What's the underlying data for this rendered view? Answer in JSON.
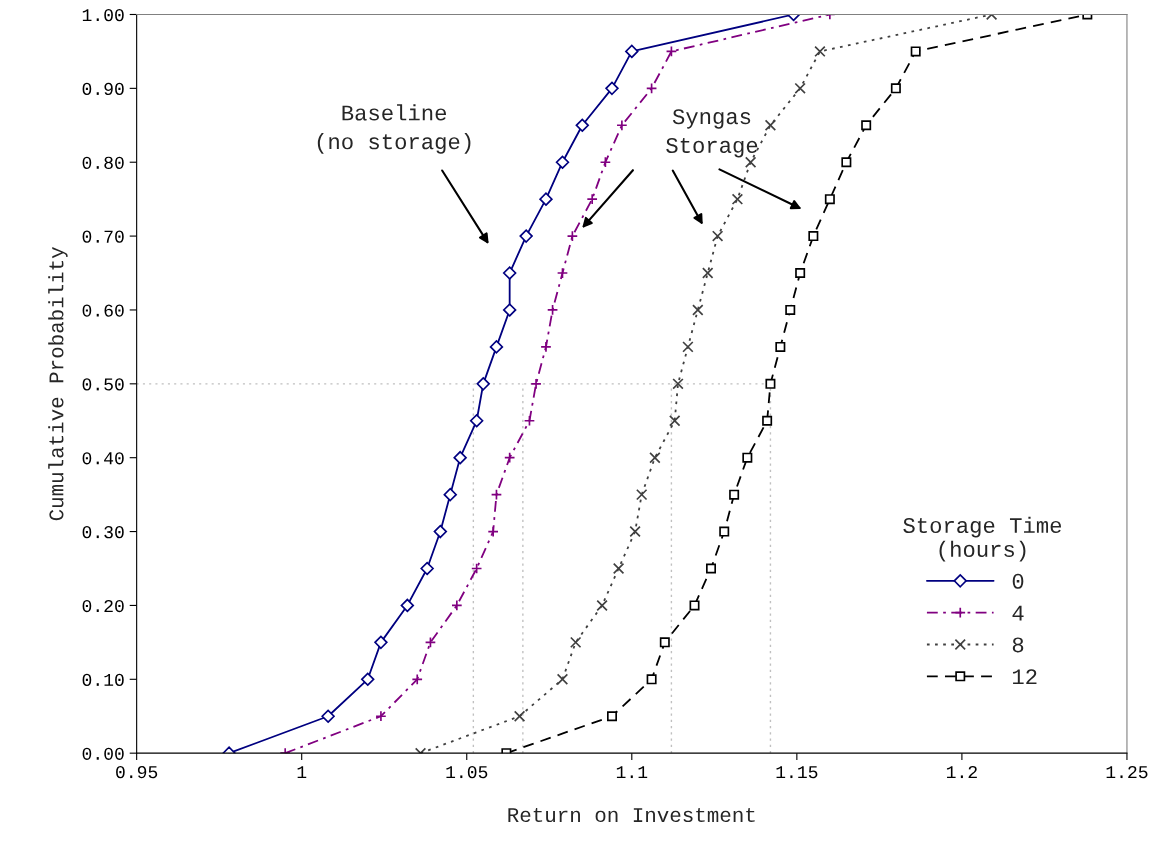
{
  "chart_data": {
    "type": "line",
    "xlabel": "Return on Investment",
    "ylabel": "Cumulative Probability",
    "legend_title": "Storage Time\n(hours)",
    "legend": "bottom right",
    "grid": false,
    "annotations": [
      "Baseline\n(no storage)",
      "Syngas\nStorage"
    ],
    "xlim": [
      0.95,
      1.25
    ],
    "xticks": [
      0.95,
      1,
      1.05,
      1.1,
      1.15,
      1.2,
      1.25
    ],
    "ylim": [
      0,
      1
    ],
    "yticks": [
      {
        "value": 0,
        "label": "0.00"
      },
      {
        "value": 0.1,
        "label": "0.10"
      },
      {
        "value": 0.2,
        "label": "0.20"
      },
      {
        "value": 0.3,
        "label": "0.30"
      },
      {
        "value": 0.4,
        "label": "0.40"
      },
      {
        "value": 0.5,
        "label": "0.50"
      },
      {
        "value": 0.6,
        "label": "0.60"
      },
      {
        "value": 0.7,
        "label": "0.70"
      },
      {
        "value": 0.8,
        "label": "0.80"
      },
      {
        "value": 0.9,
        "label": "0.90"
      },
      {
        "value": 1,
        "label": "1.00"
      }
    ],
    "ref_lines": [
      {
        "axis": "y",
        "value": 0.5,
        "color": "#c0c0c0",
        "line_style": "dotted"
      },
      {
        "axis": "x",
        "value": 1.052,
        "color": "#c0c0c0",
        "line_style": "dotted"
      },
      {
        "axis": "x",
        "value": 1.067,
        "color": "#c0c0c0",
        "line_style": "dotted"
      },
      {
        "axis": "x",
        "value": 1.112,
        "color": "#c0c0c0",
        "line_style": "dotted"
      },
      {
        "axis": "x",
        "value": 1.142,
        "color": "#c0c0c0",
        "line_style": "dotted"
      }
    ],
    "series": [
      {
        "name": "0",
        "color": "#000080",
        "marker": "diamond",
        "line_style": "solid",
        "x": [
          0.978,
          1.008,
          1.02,
          1.024,
          1.032,
          1.038,
          1.042,
          1.045,
          1.048,
          1.053,
          1.055,
          1.059,
          1.063,
          1.063,
          1.068,
          1.074,
          1.079,
          1.085,
          1.094,
          1.1,
          1.149
        ],
        "values": [
          0,
          0.05,
          0.1,
          0.15,
          0.2,
          0.25,
          0.3,
          0.35,
          0.4,
          0.45,
          0.5,
          0.55,
          0.6,
          0.65,
          0.7,
          0.75,
          0.8,
          0.85,
          0.9,
          0.95,
          1
        ]
      },
      {
        "name": "4",
        "color": "#800080",
        "marker": "plus",
        "line_style": "dashdot",
        "x": [
          0.995,
          1.024,
          1.035,
          1.039,
          1.047,
          1.053,
          1.058,
          1.059,
          1.063,
          1.069,
          1.071,
          1.074,
          1.076,
          1.079,
          1.082,
          1.088,
          1.092,
          1.097,
          1.106,
          1.112,
          1.16
        ],
        "values": [
          0,
          0.05,
          0.1,
          0.15,
          0.2,
          0.25,
          0.3,
          0.35,
          0.4,
          0.45,
          0.5,
          0.55,
          0.6,
          0.65,
          0.7,
          0.75,
          0.8,
          0.85,
          0.9,
          0.95,
          1
        ]
      },
      {
        "name": "8",
        "color": "#404040",
        "marker": "cross",
        "line_style": "dotted",
        "x": [
          1.036,
          1.066,
          1.079,
          1.083,
          1.091,
          1.096,
          1.101,
          1.103,
          1.107,
          1.113,
          1.114,
          1.117,
          1.12,
          1.123,
          1.126,
          1.132,
          1.136,
          1.142,
          1.151,
          1.157,
          1.209
        ],
        "values": [
          0,
          0.05,
          0.1,
          0.15,
          0.2,
          0.25,
          0.3,
          0.35,
          0.4,
          0.45,
          0.5,
          0.55,
          0.6,
          0.65,
          0.7,
          0.75,
          0.8,
          0.85,
          0.9,
          0.95,
          1
        ]
      },
      {
        "name": "12",
        "color": "#000000",
        "marker": "square",
        "line_style": "dashed",
        "x": [
          1.062,
          1.094,
          1.106,
          1.11,
          1.119,
          1.124,
          1.128,
          1.131,
          1.135,
          1.141,
          1.142,
          1.145,
          1.148,
          1.151,
          1.155,
          1.16,
          1.165,
          1.171,
          1.18,
          1.186,
          1.238
        ],
        "values": [
          0,
          0.05,
          0.1,
          0.15,
          0.2,
          0.25,
          0.3,
          0.35,
          0.4,
          0.45,
          0.5,
          0.55,
          0.6,
          0.65,
          0.7,
          0.75,
          0.8,
          0.85,
          0.9,
          0.95,
          1
        ]
      }
    ]
  }
}
